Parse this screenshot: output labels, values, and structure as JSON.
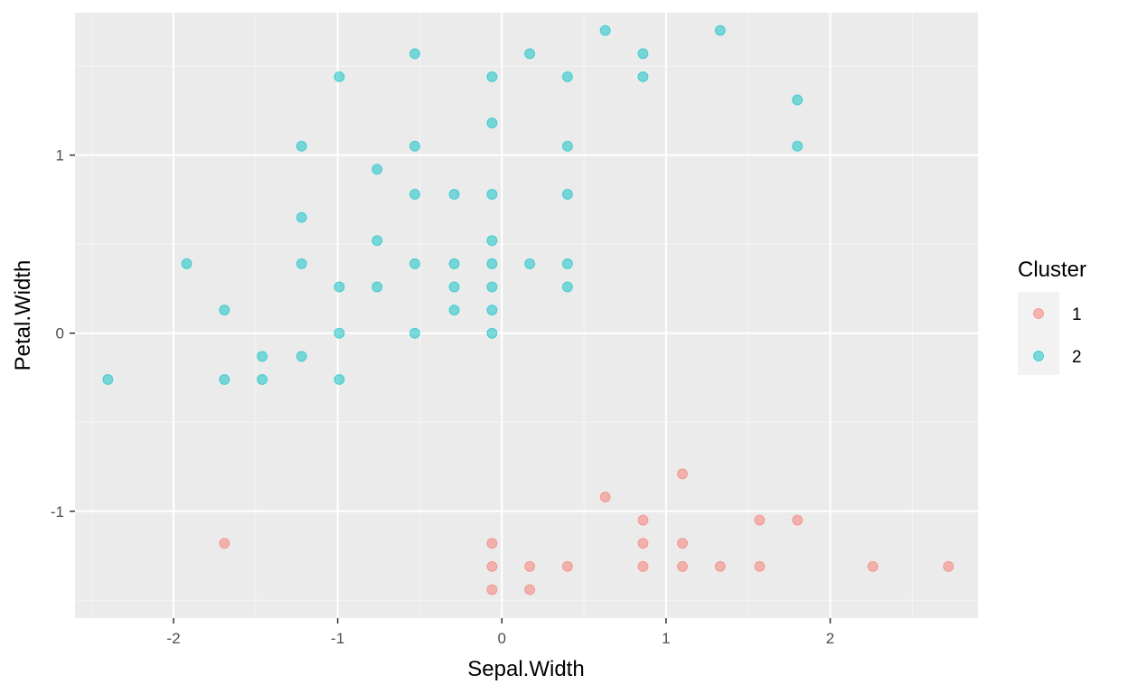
{
  "chart_data": {
    "type": "scatter",
    "title": "",
    "xlabel": "Sepal.Width",
    "ylabel": "Petal.Width",
    "xlim": [
      -2.6,
      2.9
    ],
    "ylim": [
      -1.6,
      1.8
    ],
    "x_ticks": [
      -2,
      -1,
      0,
      1,
      2
    ],
    "x_tick_labels": [
      "-2",
      "-1",
      "0",
      "1",
      "2"
    ],
    "y_ticks": [
      -1,
      0,
      1
    ],
    "y_tick_labels": [
      "-1",
      "0",
      "1"
    ],
    "grid": true,
    "legend": {
      "title": "Cluster",
      "position": "right"
    },
    "series": [
      {
        "name": "1",
        "color": "#F8766D",
        "points": [
          [
            -1.69,
            -1.18
          ],
          [
            -0.06,
            -1.18
          ],
          [
            -0.06,
            -1.31
          ],
          [
            -0.06,
            -1.44
          ],
          [
            0.17,
            -1.31
          ],
          [
            0.17,
            -1.44
          ],
          [
            0.4,
            -1.31
          ],
          [
            0.63,
            -0.92
          ],
          [
            0.86,
            -1.05
          ],
          [
            0.86,
            -1.18
          ],
          [
            0.86,
            -1.31
          ],
          [
            1.1,
            -0.79
          ],
          [
            1.1,
            -1.18
          ],
          [
            1.1,
            -1.31
          ],
          [
            1.33,
            -1.31
          ],
          [
            1.57,
            -1.05
          ],
          [
            1.57,
            -1.31
          ],
          [
            1.8,
            -1.05
          ],
          [
            2.26,
            -1.31
          ],
          [
            2.72,
            -1.31
          ]
        ]
      },
      {
        "name": "2",
        "color": "#00BFC4",
        "points": [
          [
            -2.4,
            -0.26
          ],
          [
            -1.92,
            0.39
          ],
          [
            -1.69,
            0.13
          ],
          [
            -1.69,
            -0.26
          ],
          [
            -1.46,
            -0.13
          ],
          [
            -1.46,
            -0.26
          ],
          [
            -1.22,
            1.05
          ],
          [
            -1.22,
            0.65
          ],
          [
            -1.22,
            0.39
          ],
          [
            -1.22,
            -0.13
          ],
          [
            -0.99,
            1.44
          ],
          [
            -0.99,
            0.26
          ],
          [
            -0.99,
            0.0
          ],
          [
            -0.99,
            -0.26
          ],
          [
            -0.76,
            0.92
          ],
          [
            -0.76,
            0.52
          ],
          [
            -0.76,
            0.26
          ],
          [
            -0.53,
            1.57
          ],
          [
            -0.53,
            1.05
          ],
          [
            -0.53,
            0.78
          ],
          [
            -0.53,
            0.39
          ],
          [
            -0.53,
            0.0
          ],
          [
            -0.29,
            0.78
          ],
          [
            -0.29,
            0.39
          ],
          [
            -0.29,
            0.26
          ],
          [
            -0.29,
            0.13
          ],
          [
            -0.06,
            1.44
          ],
          [
            -0.06,
            1.18
          ],
          [
            -0.06,
            0.78
          ],
          [
            -0.06,
            0.52
          ],
          [
            -0.06,
            0.39
          ],
          [
            -0.06,
            0.26
          ],
          [
            -0.06,
            0.13
          ],
          [
            -0.06,
            0.0
          ],
          [
            0.17,
            1.57
          ],
          [
            0.17,
            0.39
          ],
          [
            0.4,
            1.44
          ],
          [
            0.4,
            1.05
          ],
          [
            0.4,
            0.78
          ],
          [
            0.4,
            0.39
          ],
          [
            0.4,
            0.26
          ],
          [
            0.63,
            1.7
          ],
          [
            0.86,
            1.57
          ],
          [
            0.86,
            1.44
          ],
          [
            1.33,
            1.7
          ],
          [
            1.8,
            1.31
          ],
          [
            1.8,
            1.05
          ]
        ]
      }
    ]
  }
}
